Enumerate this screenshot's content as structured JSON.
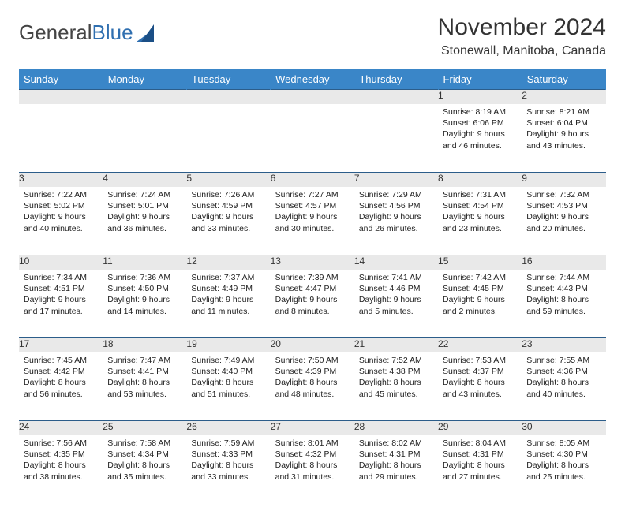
{
  "logo": {
    "text_a": "General",
    "text_b": "Blue"
  },
  "title": "November 2024",
  "subtitle": "Stonewall, Manitoba, Canada",
  "colors": {
    "header_bg": "#3a86c8",
    "header_fg": "#ffffff",
    "daynum_bg": "#e9e9e9",
    "rule": "#2c5d8a",
    "text": "#333333",
    "logo_blue": "#2f6fb0"
  },
  "weekdays": [
    "Sunday",
    "Monday",
    "Tuesday",
    "Wednesday",
    "Thursday",
    "Friday",
    "Saturday"
  ],
  "weeks": [
    [
      null,
      null,
      null,
      null,
      null,
      {
        "n": "1",
        "sr": "Sunrise: 8:19 AM",
        "ss": "Sunset: 6:06 PM",
        "d1": "Daylight: 9 hours",
        "d2": "and 46 minutes."
      },
      {
        "n": "2",
        "sr": "Sunrise: 8:21 AM",
        "ss": "Sunset: 6:04 PM",
        "d1": "Daylight: 9 hours",
        "d2": "and 43 minutes."
      }
    ],
    [
      {
        "n": "3",
        "sr": "Sunrise: 7:22 AM",
        "ss": "Sunset: 5:02 PM",
        "d1": "Daylight: 9 hours",
        "d2": "and 40 minutes."
      },
      {
        "n": "4",
        "sr": "Sunrise: 7:24 AM",
        "ss": "Sunset: 5:01 PM",
        "d1": "Daylight: 9 hours",
        "d2": "and 36 minutes."
      },
      {
        "n": "5",
        "sr": "Sunrise: 7:26 AM",
        "ss": "Sunset: 4:59 PM",
        "d1": "Daylight: 9 hours",
        "d2": "and 33 minutes."
      },
      {
        "n": "6",
        "sr": "Sunrise: 7:27 AM",
        "ss": "Sunset: 4:57 PM",
        "d1": "Daylight: 9 hours",
        "d2": "and 30 minutes."
      },
      {
        "n": "7",
        "sr": "Sunrise: 7:29 AM",
        "ss": "Sunset: 4:56 PM",
        "d1": "Daylight: 9 hours",
        "d2": "and 26 minutes."
      },
      {
        "n": "8",
        "sr": "Sunrise: 7:31 AM",
        "ss": "Sunset: 4:54 PM",
        "d1": "Daylight: 9 hours",
        "d2": "and 23 minutes."
      },
      {
        "n": "9",
        "sr": "Sunrise: 7:32 AM",
        "ss": "Sunset: 4:53 PM",
        "d1": "Daylight: 9 hours",
        "d2": "and 20 minutes."
      }
    ],
    [
      {
        "n": "10",
        "sr": "Sunrise: 7:34 AM",
        "ss": "Sunset: 4:51 PM",
        "d1": "Daylight: 9 hours",
        "d2": "and 17 minutes."
      },
      {
        "n": "11",
        "sr": "Sunrise: 7:36 AM",
        "ss": "Sunset: 4:50 PM",
        "d1": "Daylight: 9 hours",
        "d2": "and 14 minutes."
      },
      {
        "n": "12",
        "sr": "Sunrise: 7:37 AM",
        "ss": "Sunset: 4:49 PM",
        "d1": "Daylight: 9 hours",
        "d2": "and 11 minutes."
      },
      {
        "n": "13",
        "sr": "Sunrise: 7:39 AM",
        "ss": "Sunset: 4:47 PM",
        "d1": "Daylight: 9 hours",
        "d2": "and 8 minutes."
      },
      {
        "n": "14",
        "sr": "Sunrise: 7:41 AM",
        "ss": "Sunset: 4:46 PM",
        "d1": "Daylight: 9 hours",
        "d2": "and 5 minutes."
      },
      {
        "n": "15",
        "sr": "Sunrise: 7:42 AM",
        "ss": "Sunset: 4:45 PM",
        "d1": "Daylight: 9 hours",
        "d2": "and 2 minutes."
      },
      {
        "n": "16",
        "sr": "Sunrise: 7:44 AM",
        "ss": "Sunset: 4:43 PM",
        "d1": "Daylight: 8 hours",
        "d2": "and 59 minutes."
      }
    ],
    [
      {
        "n": "17",
        "sr": "Sunrise: 7:45 AM",
        "ss": "Sunset: 4:42 PM",
        "d1": "Daylight: 8 hours",
        "d2": "and 56 minutes."
      },
      {
        "n": "18",
        "sr": "Sunrise: 7:47 AM",
        "ss": "Sunset: 4:41 PM",
        "d1": "Daylight: 8 hours",
        "d2": "and 53 minutes."
      },
      {
        "n": "19",
        "sr": "Sunrise: 7:49 AM",
        "ss": "Sunset: 4:40 PM",
        "d1": "Daylight: 8 hours",
        "d2": "and 51 minutes."
      },
      {
        "n": "20",
        "sr": "Sunrise: 7:50 AM",
        "ss": "Sunset: 4:39 PM",
        "d1": "Daylight: 8 hours",
        "d2": "and 48 minutes."
      },
      {
        "n": "21",
        "sr": "Sunrise: 7:52 AM",
        "ss": "Sunset: 4:38 PM",
        "d1": "Daylight: 8 hours",
        "d2": "and 45 minutes."
      },
      {
        "n": "22",
        "sr": "Sunrise: 7:53 AM",
        "ss": "Sunset: 4:37 PM",
        "d1": "Daylight: 8 hours",
        "d2": "and 43 minutes."
      },
      {
        "n": "23",
        "sr": "Sunrise: 7:55 AM",
        "ss": "Sunset: 4:36 PM",
        "d1": "Daylight: 8 hours",
        "d2": "and 40 minutes."
      }
    ],
    [
      {
        "n": "24",
        "sr": "Sunrise: 7:56 AM",
        "ss": "Sunset: 4:35 PM",
        "d1": "Daylight: 8 hours",
        "d2": "and 38 minutes."
      },
      {
        "n": "25",
        "sr": "Sunrise: 7:58 AM",
        "ss": "Sunset: 4:34 PM",
        "d1": "Daylight: 8 hours",
        "d2": "and 35 minutes."
      },
      {
        "n": "26",
        "sr": "Sunrise: 7:59 AM",
        "ss": "Sunset: 4:33 PM",
        "d1": "Daylight: 8 hours",
        "d2": "and 33 minutes."
      },
      {
        "n": "27",
        "sr": "Sunrise: 8:01 AM",
        "ss": "Sunset: 4:32 PM",
        "d1": "Daylight: 8 hours",
        "d2": "and 31 minutes."
      },
      {
        "n": "28",
        "sr": "Sunrise: 8:02 AM",
        "ss": "Sunset: 4:31 PM",
        "d1": "Daylight: 8 hours",
        "d2": "and 29 minutes."
      },
      {
        "n": "29",
        "sr": "Sunrise: 8:04 AM",
        "ss": "Sunset: 4:31 PM",
        "d1": "Daylight: 8 hours",
        "d2": "and 27 minutes."
      },
      {
        "n": "30",
        "sr": "Sunrise: 8:05 AM",
        "ss": "Sunset: 4:30 PM",
        "d1": "Daylight: 8 hours",
        "d2": "and 25 minutes."
      }
    ]
  ]
}
